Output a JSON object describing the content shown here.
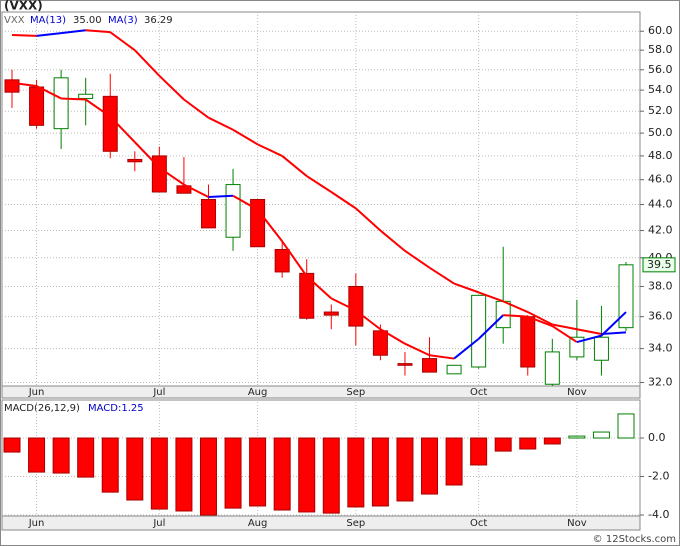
{
  "chart_data": [
    {
      "type": "candlestick",
      "title": "(VXX)",
      "name": "VXX",
      "categories": [
        null,
        "Jun",
        null,
        null,
        null,
        null,
        "Jul",
        null,
        null,
        null,
        "Aug",
        null,
        null,
        null,
        "Sep",
        null,
        null,
        null,
        null,
        "Oct",
        null,
        null,
        null,
        "Nov",
        null,
        null
      ],
      "open": [
        55.0,
        54.3,
        50.4,
        53.2,
        53.4,
        47.7,
        48.0,
        45.5,
        44.4,
        41.5,
        44.4,
        40.6,
        38.9,
        36.3,
        38.0,
        35.1,
        33.1,
        33.4,
        32.5,
        32.9,
        35.3,
        36.0,
        31.9,
        33.5,
        33.3,
        35.3
      ],
      "high": [
        56.0,
        55.0,
        56.0,
        55.2,
        55.6,
        48.4,
        48.8,
        47.9,
        45.6,
        46.9,
        44.4,
        41.3,
        39.9,
        36.8,
        38.9,
        35.5,
        33.8,
        34.7,
        33.0,
        37.4,
        40.8,
        36.1,
        34.6,
        37.1,
        36.7,
        39.7
      ],
      "low": [
        52.3,
        50.4,
        48.6,
        50.7,
        47.8,
        46.7,
        45.0,
        44.9,
        42.2,
        40.5,
        40.8,
        38.6,
        35.8,
        35.2,
        34.2,
        33.3,
        32.4,
        32.6,
        32.5,
        32.8,
        34.3,
        32.4,
        31.8,
        33.3,
        32.4,
        35.1
      ],
      "close": [
        53.8,
        50.7,
        55.2,
        53.6,
        48.4,
        47.5,
        45.0,
        44.9,
        42.2,
        45.6,
        40.8,
        39.0,
        35.9,
        36.1,
        35.4,
        33.6,
        33.0,
        32.6,
        33.0,
        37.4,
        37.0,
        32.9,
        33.8,
        34.7,
        34.7,
        39.5
      ],
      "last_close_label": "39.5",
      "up_color": "#008000",
      "down_color": "#ff0000",
      "series": [
        {
          "name": "MA(13)",
          "value_label": "35.00",
          "up_color": "#0000ff",
          "down_color": "#ff0000",
          "values": [
            59.6,
            59.5,
            59.8,
            60.1,
            59.9,
            58.0,
            55.4,
            53.1,
            51.4,
            50.3,
            49.0,
            48.0,
            46.3,
            45.0,
            43.7,
            42.0,
            40.5,
            39.3,
            38.2,
            37.6,
            37.0,
            36.3,
            35.5,
            35.2,
            34.9,
            35.0
          ]
        },
        {
          "name": "MA(3)",
          "value_label": "36.29",
          "up_color": "#0000ff",
          "down_color": "#ff0000",
          "values": [
            54.7,
            54.4,
            53.2,
            53.1,
            51.5,
            49.2,
            47.0,
            45.6,
            44.6,
            44.7,
            43.6,
            41.2,
            38.7,
            37.2,
            36.4,
            35.2,
            34.3,
            33.6,
            33.4,
            34.6,
            36.1,
            36.0,
            35.4,
            34.4,
            34.8,
            36.3
          ]
        }
      ],
      "log_scale": true,
      "grid": true,
      "ylim": [
        31.8,
        62.1
      ],
      "yticks": [
        {
          "value": 32,
          "label": "32.0"
        },
        {
          "value": 34,
          "label": "34.0"
        },
        {
          "value": 36,
          "label": "36.0"
        },
        {
          "value": 38,
          "label": "38.0"
        },
        {
          "value": 40,
          "label": "40.0"
        },
        {
          "value": 42,
          "label": "42.0"
        },
        {
          "value": 44,
          "label": "44.0"
        },
        {
          "value": 46,
          "label": "46.0"
        },
        {
          "value": 48,
          "label": "48.0"
        },
        {
          "value": 50,
          "label": "50.0"
        },
        {
          "value": 52,
          "label": "52.0"
        },
        {
          "value": 54,
          "label": "54.0"
        },
        {
          "value": 56,
          "label": "56.0"
        },
        {
          "value": 58,
          "label": "58.0"
        },
        {
          "value": 60,
          "label": "60.0"
        }
      ]
    },
    {
      "type": "bar",
      "name": "MACD(26,12,9)",
      "value_text": "MACD:1.25",
      "categories": [
        null,
        "Jun",
        null,
        null,
        null,
        null,
        "Jul",
        null,
        null,
        null,
        "Aug",
        null,
        null,
        null,
        "Sep",
        null,
        null,
        null,
        null,
        "Oct",
        null,
        null,
        null,
        "Nov",
        null,
        null
      ],
      "values": [
        -0.73,
        -1.77,
        -1.82,
        -2.03,
        -2.81,
        -3.22,
        -3.69,
        -3.79,
        -4.0,
        -3.64,
        -3.53,
        -3.74,
        -3.84,
        -3.9,
        -3.58,
        -3.53,
        -3.27,
        -2.91,
        -2.44,
        -1.4,
        -0.68,
        -0.57,
        -0.31,
        0.1,
        0.31,
        1.25
      ],
      "up_color": "#008000",
      "down_color": "#ff0000",
      "grid": true,
      "ylim": [
        -4.05,
        1.87
      ],
      "yticks": [
        {
          "value": -4,
          "label": "-4.0"
        },
        {
          "value": -2,
          "label": "-2.0"
        },
        {
          "value": 0,
          "label": "0.0"
        }
      ]
    }
  ],
  "footer": "© 12Stocks.com"
}
